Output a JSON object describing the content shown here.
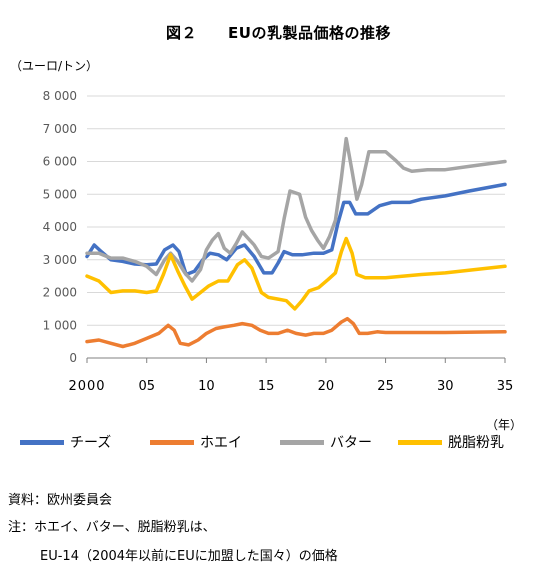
{
  "title": "図２　　EUの乳製品価格の推移",
  "unit_label": "（ユーロ/トン）",
  "year_unit": "（年）",
  "notes": {
    "source": "資料：欧州委員会",
    "note_line1": "注：ホエイ、バター、脱脂粉乳は、",
    "note_line2": "EU-14（2004年以前にEUに加盟した国々）の価格"
  },
  "chart_data": {
    "type": "line",
    "title": "図２　　EUの乳製品価格の推移",
    "ylabel": "（ユーロ/トン）",
    "xlabel": "（年）",
    "xlim": [
      2000,
      2035
    ],
    "ylim": [
      0,
      8000
    ],
    "grid": true,
    "legend_position": "bottom",
    "x_ticks": [
      2000,
      2005,
      2010,
      2015,
      2020,
      2025,
      2030,
      2035
    ],
    "x_tick_labels": [
      "2000",
      "05",
      "10",
      "15",
      "20",
      "25",
      "30",
      "35"
    ],
    "y_ticks": [
      0,
      1000,
      2000,
      3000,
      4000,
      5000,
      6000,
      7000,
      8000
    ],
    "y_tick_labels": [
      "0",
      "1 000",
      "2 000",
      "3 000",
      "4 000",
      "5 000",
      "6 000",
      "7 000",
      "8 000"
    ],
    "series": [
      {
        "name": "チーズ",
        "color": "#4472C4",
        "points": [
          [
            2000,
            3100
          ],
          [
            2000.6,
            3450
          ],
          [
            2001.2,
            3250
          ],
          [
            2002,
            3000
          ],
          [
            2003,
            2950
          ],
          [
            2004,
            2870
          ],
          [
            2005,
            2850
          ],
          [
            2005.8,
            2870
          ],
          [
            2006.5,
            3300
          ],
          [
            2007.2,
            3450
          ],
          [
            2007.7,
            3250
          ],
          [
            2008.3,
            2550
          ],
          [
            2009,
            2650
          ],
          [
            2009.7,
            3000
          ],
          [
            2010.3,
            3200
          ],
          [
            2011,
            3150
          ],
          [
            2011.7,
            3000
          ],
          [
            2012.5,
            3350
          ],
          [
            2013.2,
            3450
          ],
          [
            2014,
            3100
          ],
          [
            2014.8,
            2600
          ],
          [
            2015.5,
            2600
          ],
          [
            2016,
            2900
          ],
          [
            2016.5,
            3250
          ],
          [
            2017.2,
            3150
          ],
          [
            2018,
            3150
          ],
          [
            2019,
            3200
          ],
          [
            2019.8,
            3200
          ],
          [
            2020.5,
            3300
          ],
          [
            2021,
            4100
          ],
          [
            2021.5,
            4750
          ],
          [
            2022,
            4750
          ],
          [
            2022.5,
            4400
          ],
          [
            2023.5,
            4400
          ],
          [
            2024.5,
            4650
          ],
          [
            2025.5,
            4750
          ],
          [
            2027,
            4750
          ],
          [
            2028,
            4850
          ],
          [
            2030,
            4950
          ],
          [
            2032,
            5100
          ],
          [
            2035,
            5300
          ]
        ]
      },
      {
        "name": "ホエイ",
        "color": "#ED7D31",
        "points": [
          [
            2000,
            500
          ],
          [
            2001,
            550
          ],
          [
            2002,
            450
          ],
          [
            2003,
            350
          ],
          [
            2004,
            450
          ],
          [
            2005,
            600
          ],
          [
            2006,
            750
          ],
          [
            2006.8,
            1000
          ],
          [
            2007.3,
            850
          ],
          [
            2007.8,
            450
          ],
          [
            2008.5,
            400
          ],
          [
            2009.3,
            550
          ],
          [
            2010,
            750
          ],
          [
            2010.8,
            900
          ],
          [
            2011.5,
            950
          ],
          [
            2012.3,
            1000
          ],
          [
            2013,
            1050
          ],
          [
            2013.8,
            1000
          ],
          [
            2014.5,
            850
          ],
          [
            2015.2,
            750
          ],
          [
            2016,
            750
          ],
          [
            2016.8,
            850
          ],
          [
            2017.5,
            750
          ],
          [
            2018.3,
            700
          ],
          [
            2019,
            750
          ],
          [
            2019.8,
            750
          ],
          [
            2020.5,
            850
          ],
          [
            2021.3,
            1100
          ],
          [
            2021.8,
            1200
          ],
          [
            2022.3,
            1050
          ],
          [
            2022.8,
            750
          ],
          [
            2023.5,
            750
          ],
          [
            2024.3,
            800
          ],
          [
            2025,
            780
          ],
          [
            2030,
            780
          ],
          [
            2035,
            800
          ]
        ]
      },
      {
        "name": "バター",
        "color": "#A5A5A5",
        "points": [
          [
            2000,
            3200
          ],
          [
            2001,
            3200
          ],
          [
            2002,
            3050
          ],
          [
            2003,
            3050
          ],
          [
            2004,
            2950
          ],
          [
            2005,
            2800
          ],
          [
            2005.8,
            2550
          ],
          [
            2006.5,
            3000
          ],
          [
            2007,
            3200
          ],
          [
            2007.6,
            2950
          ],
          [
            2008.2,
            2600
          ],
          [
            2008.8,
            2350
          ],
          [
            2009.5,
            2700
          ],
          [
            2010,
            3300
          ],
          [
            2010.5,
            3600
          ],
          [
            2011,
            3800
          ],
          [
            2011.5,
            3350
          ],
          [
            2012,
            3200
          ],
          [
            2012.5,
            3500
          ],
          [
            2013,
            3850
          ],
          [
            2013.5,
            3650
          ],
          [
            2014,
            3450
          ],
          [
            2014.6,
            3100
          ],
          [
            2015.2,
            3050
          ],
          [
            2016,
            3250
          ],
          [
            2016.5,
            4250
          ],
          [
            2017,
            5100
          ],
          [
            2017.8,
            5000
          ],
          [
            2018.3,
            4300
          ],
          [
            2018.8,
            3900
          ],
          [
            2019.3,
            3600
          ],
          [
            2019.8,
            3350
          ],
          [
            2020.3,
            3700
          ],
          [
            2020.8,
            4200
          ],
          [
            2021.3,
            5500
          ],
          [
            2021.7,
            6700
          ],
          [
            2022.2,
            5700
          ],
          [
            2022.6,
            4850
          ],
          [
            2023,
            5300
          ],
          [
            2023.6,
            6300
          ],
          [
            2024.5,
            6300
          ],
          [
            2025,
            6300
          ],
          [
            2025.8,
            6050
          ],
          [
            2026.5,
            5800
          ],
          [
            2027.2,
            5700
          ],
          [
            2028.5,
            5750
          ],
          [
            2030,
            5750
          ],
          [
            2032,
            5850
          ],
          [
            2035,
            6000
          ]
        ]
      },
      {
        "name": "脱脂粉乳",
        "color": "#FFC000",
        "points": [
          [
            2000,
            2500
          ],
          [
            2001,
            2350
          ],
          [
            2002,
            2000
          ],
          [
            2003,
            2050
          ],
          [
            2004,
            2050
          ],
          [
            2005,
            2000
          ],
          [
            2005.8,
            2050
          ],
          [
            2006.4,
            2550
          ],
          [
            2007,
            3150
          ],
          [
            2007.6,
            2650
          ],
          [
            2008.2,
            2200
          ],
          [
            2008.8,
            1800
          ],
          [
            2009.5,
            2000
          ],
          [
            2010.2,
            2200
          ],
          [
            2011,
            2350
          ],
          [
            2011.8,
            2350
          ],
          [
            2012.6,
            2850
          ],
          [
            2013.2,
            3000
          ],
          [
            2013.8,
            2750
          ],
          [
            2014.6,
            2000
          ],
          [
            2015.2,
            1850
          ],
          [
            2016,
            1800
          ],
          [
            2016.7,
            1750
          ],
          [
            2017.4,
            1500
          ],
          [
            2018,
            1750
          ],
          [
            2018.6,
            2050
          ],
          [
            2019.4,
            2150
          ],
          [
            2020.2,
            2400
          ],
          [
            2020.8,
            2600
          ],
          [
            2021.3,
            3250
          ],
          [
            2021.7,
            3650
          ],
          [
            2022.2,
            3200
          ],
          [
            2022.6,
            2550
          ],
          [
            2023.3,
            2450
          ],
          [
            2024.3,
            2450
          ],
          [
            2025,
            2450
          ],
          [
            2028,
            2550
          ],
          [
            2030,
            2600
          ],
          [
            2035,
            2800
          ]
        ]
      }
    ]
  }
}
